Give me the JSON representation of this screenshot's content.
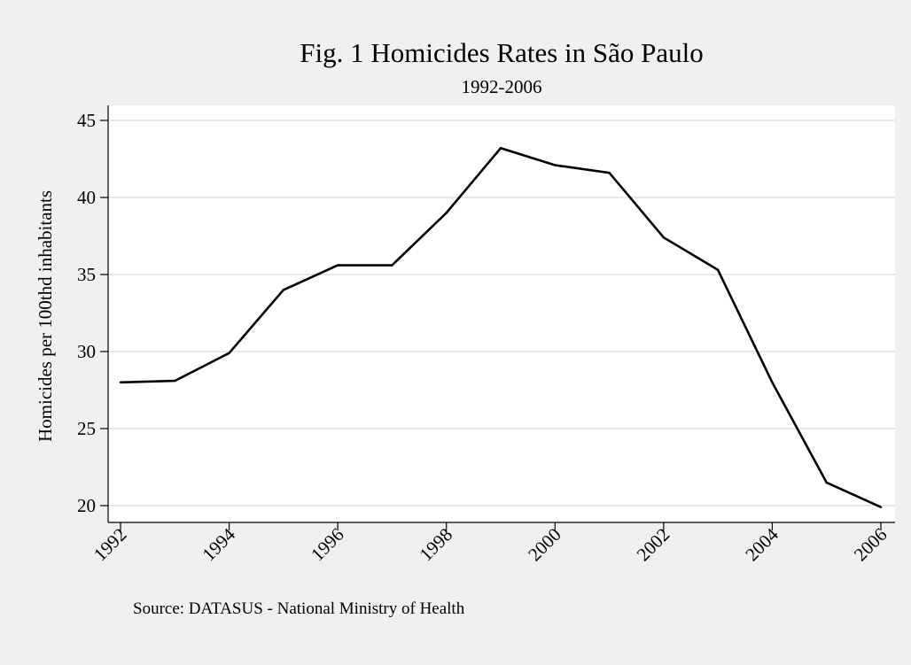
{
  "chart_data": {
    "type": "line",
    "title": "Fig. 1 Homicides Rates in São Paulo",
    "subtitle": "1992-2006",
    "xlabel": "",
    "ylabel": "Homicides per 100thd inhabitants",
    "x": [
      1992,
      1993,
      1994,
      1995,
      1996,
      1997,
      1998,
      1999,
      2000,
      2001,
      2002,
      2003,
      2004,
      2005,
      2006
    ],
    "series": [
      {
        "values": [
          28.0,
          28.1,
          29.9,
          34.0,
          35.6,
          35.6,
          39.0,
          43.2,
          42.1,
          41.6,
          37.4,
          35.3,
          28.0,
          21.5,
          19.9
        ]
      }
    ],
    "xticks": [
      1992,
      1994,
      1996,
      1998,
      2000,
      2002,
      2004,
      2006
    ],
    "yticks": [
      20,
      25,
      30,
      35,
      40,
      45
    ],
    "xlim": [
      1992,
      2006
    ],
    "ylim": [
      19.4,
      45
    ],
    "grid": true,
    "colors": {
      "background": "#f0f0f0",
      "plot_area": "#ffffff",
      "line": "#000000",
      "grid": "#e8e8e8"
    },
    "note": "Source: DATASUS - National Ministry of Health"
  }
}
